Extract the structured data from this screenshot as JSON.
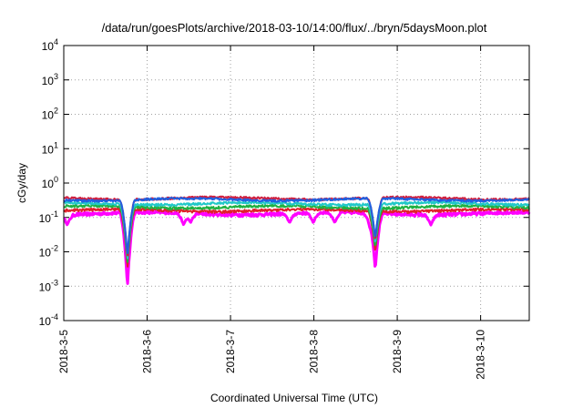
{
  "chart_data": {
    "type": "line",
    "title": "/data/run/goesPlots/archive/2018-03-10/14:00/flux/../bryn/5daysMoon.plot",
    "xlabel": "Coordinated Universal Time (UTC)",
    "ylabel": "cGy/day",
    "yscale": "log",
    "ylim": [
      0.0001,
      10000
    ],
    "xlim": [
      "2018-03-05T00:00",
      "2018-03-10T14:00"
    ],
    "grid": true,
    "y_ticks": [
      {
        "base": "10",
        "exp": "-4",
        "value": 0.0001
      },
      {
        "base": "10",
        "exp": "-3",
        "value": 0.001
      },
      {
        "base": "10",
        "exp": "-2",
        "value": 0.01
      },
      {
        "base": "10",
        "exp": "-1",
        "value": 0.1
      },
      {
        "base": "10",
        "exp": "0",
        "value": 1
      },
      {
        "base": "10",
        "exp": "1",
        "value": 10
      },
      {
        "base": "10",
        "exp": "2",
        "value": 100
      },
      {
        "base": "10",
        "exp": "3",
        "value": 1000
      },
      {
        "base": "10",
        "exp": "4",
        "value": 10000
      }
    ],
    "x_ticks": [
      {
        "label": "2018-3-5",
        "value": "2018-03-05T00:00"
      },
      {
        "label": "2018-3-6",
        "value": "2018-03-06T00:00"
      },
      {
        "label": "2018-3-7",
        "value": "2018-03-07T00:00"
      },
      {
        "label": "2018-3-8",
        "value": "2018-03-08T00:00"
      },
      {
        "label": "2018-3-9",
        "value": "2018-03-09T00:00"
      },
      {
        "label": "2018-3-10",
        "value": "2018-03-10T00:00"
      }
    ],
    "series": [
      {
        "color": "#ff00ff",
        "base": 0.13,
        "amp": 0.2
      },
      {
        "color": "#e0202a",
        "base": 0.16,
        "amp": 0.18
      },
      {
        "color": "#20b040",
        "base": 0.2,
        "amp": 0.17
      },
      {
        "color": "#20c8c8",
        "base": 0.25,
        "amp": 0.16
      },
      {
        "color": "#d02040",
        "base": 0.36,
        "amp": 0.14
      },
      {
        "color": "#2060e0",
        "base": 0.33,
        "amp": 0.14
      }
    ],
    "dips": [
      {
        "x": "2018-03-05T01:00",
        "min": 0.06
      },
      {
        "x": "2018-03-05T18:20",
        "min": 0.001
      },
      {
        "x": "2018-03-06T10:30",
        "min": 0.06
      },
      {
        "x": "2018-03-06T12:30",
        "min": 0.07
      },
      {
        "x": "2018-03-07T17:00",
        "min": 0.07
      },
      {
        "x": "2018-03-07T23:50",
        "min": 0.07
      },
      {
        "x": "2018-03-08T06:00",
        "min": 0.07
      },
      {
        "x": "2018-03-08T16:00",
        "min": 0.07
      },
      {
        "x": "2018-03-08T17:40",
        "min": 0.003
      },
      {
        "x": "2018-03-09T09:40",
        "min": 0.06
      }
    ]
  }
}
